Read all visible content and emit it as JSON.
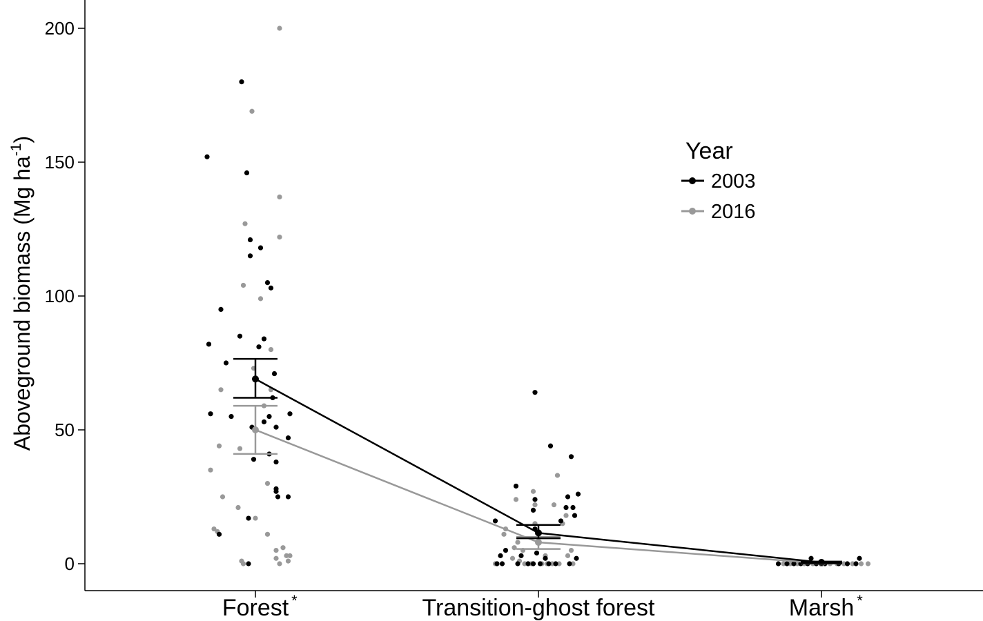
{
  "chart_data": {
    "type": "scatter",
    "ylabel": "Aboveground biomass (Mg ha",
    "ylabel_sup": "-1",
    "ylabel_close": ")",
    "ylim": [
      -10,
      210
    ],
    "yticks": [
      0,
      50,
      100,
      150,
      200
    ],
    "categories": [
      "Forest",
      "Transition-ghost forest",
      "Marsh"
    ],
    "category_stars": [
      "*",
      "",
      "*"
    ],
    "legend": {
      "title": "Year",
      "position": "top-right"
    },
    "grid": false,
    "series": [
      {
        "name": "2003",
        "color": "#000000",
        "means": [
          69,
          11.5,
          0.5
        ],
        "se_low": [
          62,
          9.5,
          0.2
        ],
        "se_high": [
          76.5,
          14.5,
          0.8
        ],
        "points": [
          {
            "cat": 0,
            "dx": -0.28,
            "y": 152
          },
          {
            "cat": 0,
            "dx": -0.27,
            "y": 82
          },
          {
            "cat": 0,
            "dx": -0.26,
            "y": 56
          },
          {
            "cat": 0,
            "dx": -0.21,
            "y": 11
          },
          {
            "cat": 0,
            "dx": -0.2,
            "y": 95
          },
          {
            "cat": 0,
            "dx": -0.17,
            "y": 75
          },
          {
            "cat": 0,
            "dx": -0.14,
            "y": 55
          },
          {
            "cat": 0,
            "dx": -0.09,
            "y": 85
          },
          {
            "cat": 0,
            "dx": -0.08,
            "y": 180
          },
          {
            "cat": 0,
            "dx": -0.05,
            "y": 146
          },
          {
            "cat": 0,
            "dx": -0.04,
            "y": 0
          },
          {
            "cat": 0,
            "dx": -0.04,
            "y": 17
          },
          {
            "cat": 0,
            "dx": -0.03,
            "y": 121
          },
          {
            "cat": 0,
            "dx": -0.03,
            "y": 115
          },
          {
            "cat": 0,
            "dx": -0.02,
            "y": 51
          },
          {
            "cat": 0,
            "dx": -0.01,
            "y": 39
          },
          {
            "cat": 0,
            "dx": 0.02,
            "y": 81
          },
          {
            "cat": 0,
            "dx": 0.03,
            "y": 118
          },
          {
            "cat": 0,
            "dx": 0.05,
            "y": 84
          },
          {
            "cat": 0,
            "dx": 0.05,
            "y": 53
          },
          {
            "cat": 0,
            "dx": 0.07,
            "y": 105
          },
          {
            "cat": 0,
            "dx": 0.08,
            "y": 55
          },
          {
            "cat": 0,
            "dx": 0.08,
            "y": 41
          },
          {
            "cat": 0,
            "dx": 0.09,
            "y": 103
          },
          {
            "cat": 0,
            "dx": 0.1,
            "y": 62
          },
          {
            "cat": 0,
            "dx": 0.11,
            "y": 71
          },
          {
            "cat": 0,
            "dx": 0.12,
            "y": 51
          },
          {
            "cat": 0,
            "dx": 0.12,
            "y": 38
          },
          {
            "cat": 0,
            "dx": 0.12,
            "y": 28
          },
          {
            "cat": 0,
            "dx": 0.13,
            "y": 25
          },
          {
            "cat": 0,
            "dx": 0.12,
            "y": 27
          },
          {
            "cat": 0,
            "dx": 0.19,
            "y": 47
          },
          {
            "cat": 0,
            "dx": 0.2,
            "y": 56
          },
          {
            "cat": 0,
            "dx": 0.19,
            "y": 25
          },
          {
            "cat": 1,
            "dx": -0.25,
            "y": 16
          },
          {
            "cat": 1,
            "dx": -0.24,
            "y": 0
          },
          {
            "cat": 1,
            "dx": -0.22,
            "y": 3
          },
          {
            "cat": 1,
            "dx": -0.21,
            "y": 0
          },
          {
            "cat": 1,
            "dx": -0.19,
            "y": 5
          },
          {
            "cat": 1,
            "dx": -0.13,
            "y": 29
          },
          {
            "cat": 1,
            "dx": -0.12,
            "y": 0
          },
          {
            "cat": 1,
            "dx": -0.1,
            "y": 3
          },
          {
            "cat": 1,
            "dx": -0.06,
            "y": 0
          },
          {
            "cat": 1,
            "dx": -0.03,
            "y": 0
          },
          {
            "cat": 1,
            "dx": -0.03,
            "y": 20
          },
          {
            "cat": 1,
            "dx": -0.02,
            "y": 24
          },
          {
            "cat": 1,
            "dx": -0.02,
            "y": 13
          },
          {
            "cat": 1,
            "dx": -0.01,
            "y": 4
          },
          {
            "cat": 1,
            "dx": -0.02,
            "y": 64
          },
          {
            "cat": 1,
            "dx": 0.01,
            "y": 0
          },
          {
            "cat": 1,
            "dx": 0.04,
            "y": 2
          },
          {
            "cat": 1,
            "dx": 0.06,
            "y": 0
          },
          {
            "cat": 1,
            "dx": 0.07,
            "y": 44
          },
          {
            "cat": 1,
            "dx": 0.1,
            "y": 0
          },
          {
            "cat": 1,
            "dx": 0.13,
            "y": 16
          },
          {
            "cat": 1,
            "dx": 0.16,
            "y": 21
          },
          {
            "cat": 1,
            "dx": 0.17,
            "y": 25
          },
          {
            "cat": 1,
            "dx": 0.19,
            "y": 40
          },
          {
            "cat": 1,
            "dx": 0.2,
            "y": 21
          },
          {
            "cat": 1,
            "dx": 0.21,
            "y": 18
          },
          {
            "cat": 1,
            "dx": 0.22,
            "y": 2
          },
          {
            "cat": 1,
            "dx": 0.23,
            "y": 26
          },
          {
            "cat": 1,
            "dx": 0.18,
            "y": 0
          },
          {
            "cat": 2,
            "dx": -0.25,
            "y": 0
          },
          {
            "cat": 2,
            "dx": -0.2,
            "y": 0
          },
          {
            "cat": 2,
            "dx": -0.16,
            "y": 0
          },
          {
            "cat": 2,
            "dx": -0.12,
            "y": 0
          },
          {
            "cat": 2,
            "dx": -0.08,
            "y": 0
          },
          {
            "cat": 2,
            "dx": -0.06,
            "y": 2
          },
          {
            "cat": 2,
            "dx": -0.03,
            "y": 0
          },
          {
            "cat": 2,
            "dx": 0.02,
            "y": 0
          },
          {
            "cat": 2,
            "dx": 0.1,
            "y": 0
          },
          {
            "cat": 2,
            "dx": 0.15,
            "y": 0
          },
          {
            "cat": 2,
            "dx": 0.2,
            "y": 0
          },
          {
            "cat": 2,
            "dx": 0.22,
            "y": 2
          }
        ]
      },
      {
        "name": "2016",
        "color": "#999999",
        "means": [
          50,
          8,
          0.2
        ],
        "se_low": [
          41,
          5.5,
          0.05
        ],
        "se_high": [
          59,
          10,
          0.4
        ],
        "points": [
          {
            "cat": 0,
            "dx": -0.26,
            "y": 35
          },
          {
            "cat": 0,
            "dx": -0.24,
            "y": 13
          },
          {
            "cat": 0,
            "dx": -0.22,
            "y": 12
          },
          {
            "cat": 0,
            "dx": -0.21,
            "y": 44
          },
          {
            "cat": 0,
            "dx": -0.2,
            "y": 65
          },
          {
            "cat": 0,
            "dx": -0.19,
            "y": 25
          },
          {
            "cat": 0,
            "dx": -0.1,
            "y": 21
          },
          {
            "cat": 0,
            "dx": -0.09,
            "y": 43
          },
          {
            "cat": 0,
            "dx": -0.08,
            "y": 1
          },
          {
            "cat": 0,
            "dx": -0.07,
            "y": 104
          },
          {
            "cat": 0,
            "dx": -0.07,
            "y": 0
          },
          {
            "cat": 0,
            "dx": -0.06,
            "y": 127
          },
          {
            "cat": 0,
            "dx": -0.02,
            "y": 169
          },
          {
            "cat": 0,
            "dx": -0.01,
            "y": 73
          },
          {
            "cat": 0,
            "dx": 0.0,
            "y": 17
          },
          {
            "cat": 0,
            "dx": 0.03,
            "y": 99
          },
          {
            "cat": 0,
            "dx": 0.05,
            "y": 59
          },
          {
            "cat": 0,
            "dx": 0.07,
            "y": 11
          },
          {
            "cat": 0,
            "dx": 0.09,
            "y": 80
          },
          {
            "cat": 0,
            "dx": 0.09,
            "y": 65
          },
          {
            "cat": 0,
            "dx": 0.07,
            "y": 30
          },
          {
            "cat": 0,
            "dx": 0.12,
            "y": 2
          },
          {
            "cat": 0,
            "dx": 0.12,
            "y": 5
          },
          {
            "cat": 0,
            "dx": 0.14,
            "y": 137
          },
          {
            "cat": 0,
            "dx": 0.14,
            "y": 122
          },
          {
            "cat": 0,
            "dx": 0.14,
            "y": 0
          },
          {
            "cat": 0,
            "dx": 0.14,
            "y": 200
          },
          {
            "cat": 0,
            "dx": 0.16,
            "y": 6
          },
          {
            "cat": 0,
            "dx": 0.18,
            "y": 3
          },
          {
            "cat": 0,
            "dx": 0.19,
            "y": 1
          },
          {
            "cat": 0,
            "dx": 0.2,
            "y": 3
          },
          {
            "cat": 1,
            "dx": -0.25,
            "y": 0
          },
          {
            "cat": 1,
            "dx": -0.2,
            "y": 11
          },
          {
            "cat": 1,
            "dx": -0.19,
            "y": 13
          },
          {
            "cat": 1,
            "dx": -0.15,
            "y": 2
          },
          {
            "cat": 1,
            "dx": -0.14,
            "y": 6
          },
          {
            "cat": 1,
            "dx": -0.13,
            "y": 24
          },
          {
            "cat": 1,
            "dx": -0.12,
            "y": 8
          },
          {
            "cat": 1,
            "dx": -0.11,
            "y": 1
          },
          {
            "cat": 1,
            "dx": -0.09,
            "y": 5
          },
          {
            "cat": 1,
            "dx": -0.08,
            "y": 0
          },
          {
            "cat": 1,
            "dx": -0.06,
            "y": 0
          },
          {
            "cat": 1,
            "dx": -0.04,
            "y": 0
          },
          {
            "cat": 1,
            "dx": -0.03,
            "y": 27
          },
          {
            "cat": 1,
            "dx": -0.02,
            "y": 15
          },
          {
            "cat": 1,
            "dx": -0.02,
            "y": 22
          },
          {
            "cat": 1,
            "dx": 0.02,
            "y": 0
          },
          {
            "cat": 1,
            "dx": 0.04,
            "y": 3
          },
          {
            "cat": 1,
            "dx": 0.05,
            "y": 0
          },
          {
            "cat": 1,
            "dx": 0.08,
            "y": 0
          },
          {
            "cat": 1,
            "dx": 0.09,
            "y": 22
          },
          {
            "cat": 1,
            "dx": 0.11,
            "y": 33
          },
          {
            "cat": 1,
            "dx": 0.12,
            "y": 0
          },
          {
            "cat": 1,
            "dx": 0.14,
            "y": 15
          },
          {
            "cat": 1,
            "dx": 0.16,
            "y": 18
          },
          {
            "cat": 1,
            "dx": 0.17,
            "y": 3
          },
          {
            "cat": 1,
            "dx": 0.19,
            "y": 5
          },
          {
            "cat": 1,
            "dx": 0.2,
            "y": 0
          },
          {
            "cat": 2,
            "dx": -0.22,
            "y": 0
          },
          {
            "cat": 2,
            "dx": -0.18,
            "y": 0
          },
          {
            "cat": 2,
            "dx": -0.14,
            "y": 0
          },
          {
            "cat": 2,
            "dx": -0.1,
            "y": 0
          },
          {
            "cat": 2,
            "dx": -0.05,
            "y": 0
          },
          {
            "cat": 2,
            "dx": 0.0,
            "y": 0
          },
          {
            "cat": 2,
            "dx": 0.05,
            "y": 0
          },
          {
            "cat": 2,
            "dx": 0.09,
            "y": 0
          },
          {
            "cat": 2,
            "dx": 0.13,
            "y": 0
          },
          {
            "cat": 2,
            "dx": 0.18,
            "y": 0
          },
          {
            "cat": 2,
            "dx": 0.23,
            "y": 0
          },
          {
            "cat": 2,
            "dx": 0.27,
            "y": 0
          }
        ]
      }
    ]
  }
}
